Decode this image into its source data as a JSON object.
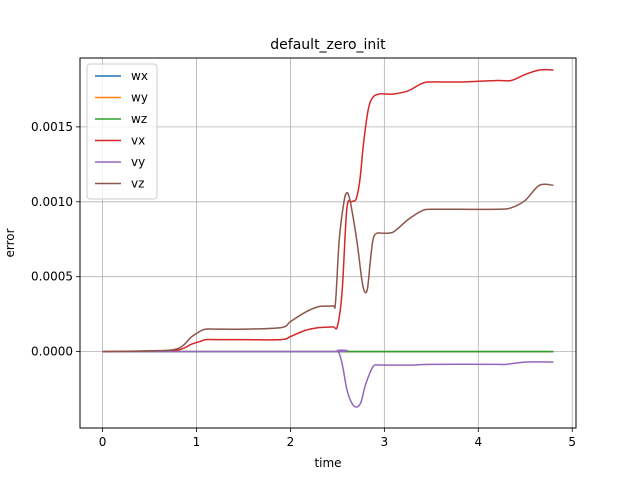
{
  "chart_data": {
    "type": "line",
    "title": "default_zero_init",
    "xlabel": "time",
    "ylabel": "error",
    "xlim": [
      -0.24,
      5.04
    ],
    "ylim": [
      -0.00051,
      0.00196
    ],
    "xticks": [
      0,
      1,
      2,
      3,
      4,
      5
    ],
    "xtick_labels": [
      "0",
      "1",
      "2",
      "3",
      "4",
      "5"
    ],
    "yticks": [
      0,
      0.0005,
      0.001,
      0.0015
    ],
    "ytick_labels": [
      "0.0000",
      "0.0005",
      "0.0010",
      "0.0015"
    ],
    "grid": true,
    "legend_position": "top-left",
    "series": [
      {
        "name": "wx",
        "color": "#1f77b4",
        "x": [
          0,
          2.5,
          4.8
        ],
        "y": [
          0,
          0,
          0
        ]
      },
      {
        "name": "wy",
        "color": "#ff7f0e",
        "x": [
          0,
          2.5,
          4.8
        ],
        "y": [
          0,
          0,
          0
        ]
      },
      {
        "name": "wz",
        "color": "#2ca02c",
        "x": [
          0,
          2.5,
          4.8
        ],
        "y": [
          0,
          0,
          0
        ]
      },
      {
        "name": "vx",
        "color": "#d62728",
        "x": [
          0,
          0.5,
          0.8,
          0.95,
          1.05,
          1.1,
          1.2,
          1.5,
          1.9,
          2.0,
          2.15,
          2.3,
          2.45,
          2.5,
          2.55,
          2.6,
          2.65,
          2.7,
          2.74,
          2.78,
          2.83,
          2.88,
          2.95,
          3.0,
          3.1,
          3.25,
          3.4,
          3.5,
          3.8,
          4.2,
          4.35,
          4.5,
          4.65,
          4.8
        ],
        "y": [
          0,
          5e-06,
          1e-05,
          5e-05,
          7e-05,
          8e-05,
          8e-05,
          8e-05,
          8e-05,
          0.0001,
          0.00014,
          0.00016,
          0.000165,
          0.00017,
          0.0004,
          0.00095,
          0.001,
          0.00102,
          0.00115,
          0.0014,
          0.00162,
          0.0017,
          0.00172,
          0.00172,
          0.00172,
          0.00174,
          0.00179,
          0.0018,
          0.0018,
          0.00181,
          0.00181,
          0.00185,
          0.00188,
          0.00188
        ]
      },
      {
        "name": "vy",
        "color": "#9467bd",
        "x": [
          0,
          2.4,
          2.5,
          2.55,
          2.6,
          2.65,
          2.7,
          2.75,
          2.8,
          2.88,
          2.95,
          3.0,
          3.3,
          3.5,
          4.2,
          4.3,
          4.5,
          4.8
        ],
        "y": [
          0,
          0,
          5e-06,
          -8e-05,
          -0.00025,
          -0.00034,
          -0.00037,
          -0.00034,
          -0.00022,
          -0.0001,
          -9e-05,
          -9e-05,
          -9e-05,
          -8.5e-05,
          -8.5e-05,
          -8.5e-05,
          -7e-05,
          -7e-05
        ]
      },
      {
        "name": "vz",
        "color": "#8c564b",
        "x": [
          0,
          0.5,
          0.8,
          0.95,
          1.05,
          1.1,
          1.2,
          1.5,
          1.9,
          2.0,
          2.15,
          2.3,
          2.45,
          2.48,
          2.52,
          2.57,
          2.6,
          2.63,
          2.68,
          2.72,
          2.76,
          2.79,
          2.82,
          2.85,
          2.88,
          2.92,
          3.0,
          3.1,
          3.25,
          3.4,
          3.5,
          3.8,
          4.2,
          4.35,
          4.5,
          4.65,
          4.8
        ],
        "y": [
          0,
          5e-06,
          2e-05,
          0.0001,
          0.00014,
          0.00015,
          0.00015,
          0.00015,
          0.00016,
          0.0002,
          0.00026,
          0.0003,
          0.000305,
          0.00033,
          0.00075,
          0.001,
          0.00106,
          0.00102,
          0.00085,
          0.00068,
          0.00048,
          0.0004,
          0.00042,
          0.0006,
          0.00075,
          0.00079,
          0.00079,
          0.0008,
          0.00088,
          0.00094,
          0.00095,
          0.00095,
          0.00095,
          0.00096,
          0.00101,
          0.00111,
          0.00111
        ]
      }
    ]
  }
}
